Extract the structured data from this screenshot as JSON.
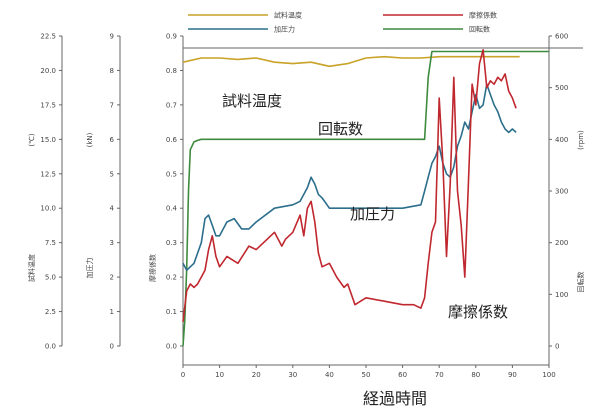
{
  "chart_data": {
    "type": "line",
    "title": "",
    "xlabel": "経過時間",
    "xlim": [
      0,
      100
    ],
    "x_ticks": [
      0,
      10,
      20,
      30,
      40,
      50,
      60,
      70,
      80,
      90,
      100
    ],
    "grid": false,
    "legend_position": "top",
    "legend": [
      "試料温度",
      "摩擦係数",
      "加圧力",
      "回転数"
    ],
    "axes": [
      {
        "id": "temp",
        "side": "left",
        "label": "(℃)",
        "ylim": [
          0,
          22.5
        ],
        "ticks": [
          "0.0",
          "2.5",
          "5.0",
          "7.5",
          "10.0",
          "12.5",
          "15.0",
          "17.5",
          "20.0",
          "22.5"
        ],
        "side_label": "試料温度"
      },
      {
        "id": "press",
        "side": "left",
        "label": "(kN)",
        "ylim": [
          0,
          9
        ],
        "ticks": [
          "0",
          "1",
          "2",
          "3",
          "4",
          "5",
          "6",
          "7",
          "8",
          "9"
        ],
        "side_label": "加圧力"
      },
      {
        "id": "mu",
        "side": "left",
        "label": "",
        "ylim": [
          0,
          0.9
        ],
        "ticks": [
          "0.0",
          "0.1",
          "0.2",
          "0.3",
          "0.4",
          "0.5",
          "0.6",
          "0.7",
          "0.8",
          "0.9"
        ],
        "side_label": "摩擦係数"
      },
      {
        "id": "rpm",
        "side": "right",
        "label": "(rpm)",
        "ylim": [
          0,
          600
        ],
        "ticks": [
          "0",
          "100",
          "200",
          "300",
          "400",
          "500",
          "600"
        ],
        "side_label": "回転数"
      }
    ],
    "series": [
      {
        "name": "試料温度",
        "axis": "temp",
        "color": "#c9a227",
        "x": [
          0,
          5,
          10,
          15,
          20,
          25,
          30,
          35,
          40,
          45,
          50,
          55,
          60,
          65,
          70,
          75,
          80,
          85,
          90,
          92
        ],
        "y": [
          20.6,
          20.9,
          20.9,
          20.8,
          20.9,
          20.6,
          20.5,
          20.6,
          20.3,
          20.5,
          20.9,
          21.0,
          20.9,
          20.9,
          21.0,
          21.0,
          21.0,
          21.0,
          21.0,
          21.0
        ]
      },
      {
        "name": "回転数",
        "axis": "rpm",
        "color": "#3e8a3e",
        "x": [
          0,
          0.5,
          1,
          1.5,
          2,
          3,
          4,
          5,
          10,
          20,
          30,
          40,
          50,
          60,
          66,
          67,
          68,
          70,
          80,
          90,
          100
        ],
        "y": [
          0,
          50,
          150,
          300,
          380,
          395,
          398,
          400,
          400,
          400,
          400,
          400,
          400,
          400,
          400,
          520,
          570,
          570,
          570,
          570,
          570
        ]
      },
      {
        "name": "加圧力",
        "axis": "press",
        "color": "#2c6e8c",
        "x": [
          0,
          1,
          3,
          5,
          6,
          7,
          8,
          9,
          10,
          12,
          14,
          16,
          18,
          20,
          25,
          30,
          32,
          34,
          35,
          36,
          37,
          38,
          40,
          45,
          50,
          55,
          60,
          65,
          66,
          67,
          68,
          69,
          70,
          71,
          72,
          73,
          74,
          75,
          76,
          77,
          78,
          79,
          80,
          81,
          82,
          83,
          84,
          85,
          86,
          87,
          88,
          89,
          90,
          91
        ],
        "y": [
          2.4,
          2.2,
          2.4,
          3.0,
          3.7,
          3.8,
          3.5,
          3.2,
          3.2,
          3.6,
          3.7,
          3.4,
          3.4,
          3.6,
          4.0,
          4.1,
          4.2,
          4.6,
          4.9,
          4.7,
          4.4,
          4.3,
          4.0,
          4.0,
          4.0,
          4.0,
          4.0,
          4.1,
          4.5,
          4.9,
          5.3,
          5.5,
          5.8,
          5.3,
          5.0,
          4.9,
          5.2,
          5.8,
          6.1,
          6.5,
          6.3,
          6.8,
          7.3,
          6.9,
          7.0,
          7.6,
          7.3,
          7.0,
          6.8,
          6.5,
          6.3,
          6.2,
          6.3,
          6.2
        ]
      },
      {
        "name": "摩擦係数",
        "axis": "mu",
        "color": "#c0282f",
        "x": [
          0,
          1,
          2,
          3,
          4,
          5,
          6,
          7,
          8,
          9,
          10,
          12,
          15,
          18,
          20,
          22,
          25,
          27,
          28,
          30,
          32,
          33,
          34,
          35,
          36,
          37,
          38,
          40,
          42,
          44,
          45,
          47,
          50,
          55,
          60,
          63,
          65,
          66,
          67,
          68,
          69,
          70,
          71,
          72,
          73,
          74,
          75,
          76,
          77,
          78,
          79,
          80,
          81,
          82,
          83,
          84,
          85,
          86,
          87,
          88,
          89,
          90,
          91
        ],
        "y": [
          0.07,
          0.16,
          0.18,
          0.17,
          0.18,
          0.2,
          0.22,
          0.28,
          0.32,
          0.26,
          0.23,
          0.26,
          0.24,
          0.29,
          0.28,
          0.3,
          0.33,
          0.29,
          0.31,
          0.33,
          0.38,
          0.32,
          0.4,
          0.42,
          0.36,
          0.27,
          0.23,
          0.24,
          0.2,
          0.17,
          0.18,
          0.12,
          0.14,
          0.13,
          0.12,
          0.12,
          0.11,
          0.14,
          0.24,
          0.33,
          0.36,
          0.72,
          0.53,
          0.26,
          0.47,
          0.78,
          0.45,
          0.35,
          0.2,
          0.48,
          0.76,
          0.7,
          0.82,
          0.86,
          0.75,
          0.77,
          0.76,
          0.78,
          0.77,
          0.79,
          0.74,
          0.72,
          0.69
        ]
      }
    ]
  }
}
